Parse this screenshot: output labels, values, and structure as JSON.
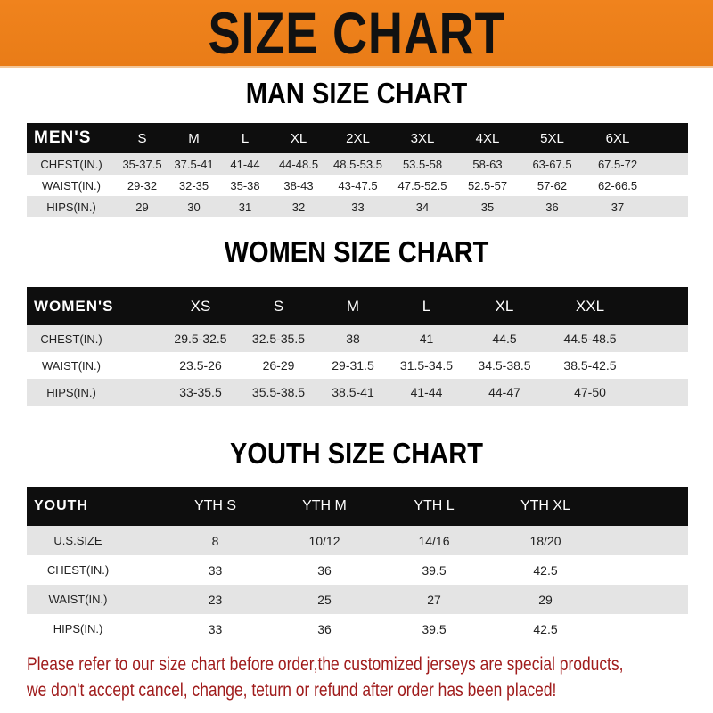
{
  "banner": {
    "title": "SIZE CHART",
    "color": "#ef821b"
  },
  "men": {
    "title": "MAN SIZE CHART",
    "header": [
      "MEN'S",
      "S",
      "M",
      "L",
      "XL",
      "2XL",
      "3XL",
      "4XL",
      "5XL",
      "6XL"
    ],
    "rows": [
      [
        "CHEST(IN.)",
        "35-37.5",
        "37.5-41",
        "41-44",
        "44-48.5",
        "48.5-53.5",
        "53.5-58",
        "58-63",
        "63-67.5",
        "67.5-72"
      ],
      [
        "WAIST(IN.)",
        "29-32",
        "32-35",
        "35-38",
        "38-43",
        "43-47.5",
        "47.5-52.5",
        "52.5-57",
        "57-62",
        "62-66.5"
      ],
      [
        "HIPS(IN.)",
        "29",
        "30",
        "31",
        "32",
        "33",
        "34",
        "35",
        "36",
        "37"
      ]
    ]
  },
  "women": {
    "title": "WOMEN SIZE CHART",
    "header": [
      "WOMEN'S",
      "XS",
      "S",
      "M",
      "L",
      "XL",
      "XXL"
    ],
    "rows": [
      [
        "CHEST(IN.)",
        "29.5-32.5",
        "32.5-35.5",
        "38",
        "41",
        "44.5",
        "44.5-48.5"
      ],
      [
        "WAIST(IN.)",
        "23.5-26",
        "26-29",
        "29-31.5",
        "31.5-34.5",
        "34.5-38.5",
        "38.5-42.5"
      ],
      [
        "HIPS(IN.)",
        "33-35.5",
        "35.5-38.5",
        "38.5-41",
        "41-44",
        "44-47",
        "47-50"
      ]
    ]
  },
  "youth": {
    "title": "YOUTH SIZE CHART",
    "header": [
      "YOUTH",
      "YTH S",
      "YTH M",
      "YTH L",
      "YTH XL"
    ],
    "rows": [
      [
        "U.S.SIZE",
        "8",
        "10/12",
        "14/16",
        "18/20"
      ],
      [
        "CHEST(IN.)",
        "33",
        "36",
        "39.5",
        "42.5"
      ],
      [
        "WAIST(IN.)",
        "23",
        "25",
        "27",
        "29"
      ],
      [
        "HIPS(IN.)",
        "33",
        "36",
        "39.5",
        "42.5"
      ]
    ]
  },
  "notice": {
    "line1": "Please refer to our size chart before order,the customized jerseys are special products,",
    "line2": "we don't accept cancel, change, teturn or refund after order has been placed!",
    "color": "#a01c1c"
  }
}
